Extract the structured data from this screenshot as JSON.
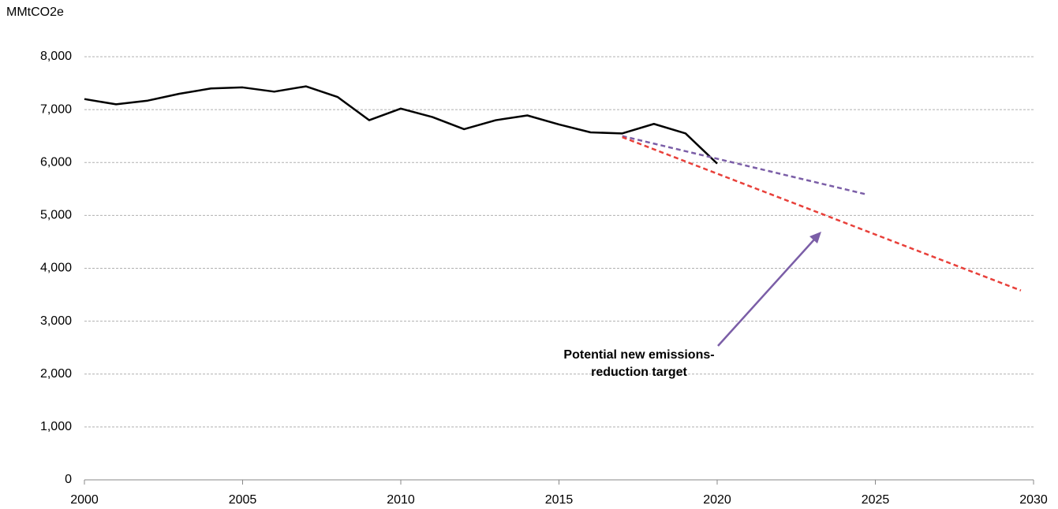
{
  "chart_data": {
    "type": "line",
    "y_label": "MMtCO2e",
    "annotation": "Potential new emissions-reduction target",
    "annotation_color": "#7b5ea7",
    "xlim": [
      2000,
      2030
    ],
    "xticks": [
      2000,
      2005,
      2010,
      2015,
      2020,
      2025,
      2030
    ],
    "ylim": [
      0,
      8000
    ],
    "yticks": [
      0,
      {
        "value": 1000,
        "label": "1,000"
      },
      {
        "value": 2000,
        "label": "2,000"
      },
      {
        "value": 3000,
        "label": "3,000"
      },
      {
        "value": 4000,
        "label": "4,000"
      },
      {
        "value": 5000,
        "label": "5,000"
      },
      {
        "value": 6000,
        "label": "6,000"
      },
      {
        "value": 7000,
        "label": "7,000"
      },
      {
        "value": 8000,
        "label": "8,000"
      }
    ],
    "grid": true,
    "series": [
      {
        "color": "#000000",
        "style": "solid",
        "x": [
          2000,
          2001,
          2002,
          2003,
          2004,
          2005,
          2006,
          2007,
          2008,
          2009,
          2010,
          2011,
          2012,
          2013,
          2014,
          2015,
          2016,
          2017,
          2018,
          2019,
          2020
        ],
        "values": [
          7200,
          7100,
          7170,
          7300,
          7400,
          7420,
          7340,
          7440,
          7240,
          6800,
          7020,
          6860,
          6630,
          6800,
          6890,
          6720,
          6570,
          6550,
          6730,
          6550,
          5980
        ]
      },
      {
        "color": "#7b5ea7",
        "style": "dashed",
        "x": [
          2017,
          2024.7
        ],
        "values": [
          6500,
          5400
        ]
      },
      {
        "color": "#e8403a",
        "style": "dashed",
        "x": [
          2017,
          2029.6
        ],
        "values": [
          6480,
          3580
        ]
      }
    ]
  }
}
